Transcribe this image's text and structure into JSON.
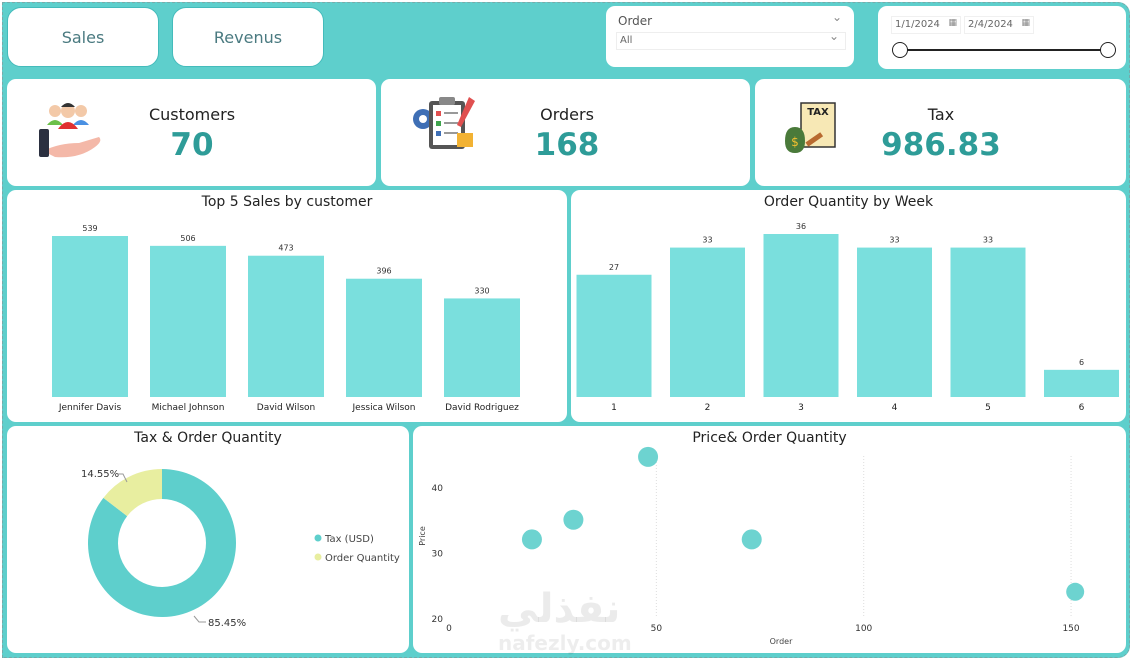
{
  "nav": {
    "sales": "Sales",
    "revenus": "Revenus"
  },
  "order_slicer": {
    "title": "Order",
    "value": "All"
  },
  "date_slicer": {
    "start": "1/1/2024",
    "end": "2/4/2024"
  },
  "kpis": {
    "customers": {
      "label": "Customers",
      "value": "70"
    },
    "orders": {
      "label": "Orders",
      "value": "168"
    },
    "tax": {
      "label": "Tax",
      "value": "986.83",
      "icon_text": "TAX"
    }
  },
  "colors": {
    "background": "#5ecfcc",
    "bar": "#7adfdd",
    "accent": "#2e9c98",
    "donut_secondary": "#e8eea0"
  },
  "chart_data": [
    {
      "type": "bar",
      "title": "Top 5 Sales by customer",
      "categories": [
        "Jennifer Davis",
        "Michael Johnson",
        "David Wilson",
        "Jessica Wilson",
        "David Rodriguez"
      ],
      "values": [
        539,
        506,
        473,
        396,
        330
      ],
      "labels": [
        "539",
        "506",
        "473",
        "396",
        "330"
      ]
    },
    {
      "type": "bar",
      "title": "Order Quantity by Week",
      "categories": [
        "1",
        "2",
        "3",
        "4",
        "5",
        "6"
      ],
      "values": [
        27,
        33,
        36,
        33,
        33,
        6
      ],
      "labels": [
        "27",
        "33",
        "36",
        "33",
        "33",
        "6"
      ]
    },
    {
      "type": "pie",
      "title": "Tax & Order Quantity",
      "donut": true,
      "series": [
        {
          "name": "Tax (USD)",
          "value": 85.45,
          "label": "85.45%"
        },
        {
          "name": "Order Quantity",
          "value": 14.55,
          "label": "14.55%"
        }
      ],
      "legend": "right"
    },
    {
      "type": "scatter",
      "title": "Price& Order Quantity",
      "xlabel": "Order",
      "ylabel": "Price",
      "xlim": [
        0,
        160
      ],
      "ylim": [
        20,
        45
      ],
      "xticks": [
        "0",
        "50",
        "100",
        "150"
      ],
      "yticks": [
        "20",
        "30",
        "40"
      ],
      "points": [
        {
          "x": 20,
          "y": 32
        },
        {
          "x": 30,
          "y": 35
        },
        {
          "x": 48,
          "y": 44.6
        },
        {
          "x": 73,
          "y": 32
        },
        {
          "x": 151,
          "y": 24
        }
      ]
    }
  ],
  "watermark": {
    "arabic": "نفذلي",
    "latin": "nafezly.com"
  }
}
